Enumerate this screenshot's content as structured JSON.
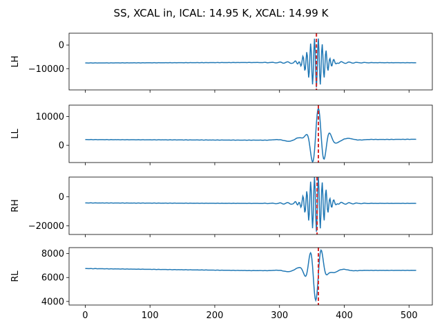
{
  "chart_data": {
    "title": "SS, XCAL in, ICAL: 14.95 K, XCAL: 14.99 K",
    "type": "line",
    "shared_x": true,
    "xlim": [
      -25,
      536
    ],
    "xticks": [
      0,
      100,
      200,
      300,
      400,
      500
    ],
    "line_color": "#1f77b4",
    "marker_color": "#d62728",
    "grid": false,
    "panels": [
      {
        "ylabel": "LH",
        "ylim": [
          -19000,
          5000
        ],
        "yticks": [
          0,
          -10000
        ],
        "ytick_labels": [
          "0",
          "−10000"
        ],
        "baseline_start": -7600,
        "baseline_mid": -7400,
        "baseline_end": -7500,
        "center": 357,
        "amp": -10500,
        "sigma": 12,
        "freq": 0.24,
        "fringe_amp": 700,
        "peak_x": 357,
        "marker_x": 357,
        "x": [
          0,
          50,
          100,
          150,
          200,
          250,
          300,
          320,
          340,
          350,
          354,
          357,
          360,
          364,
          370,
          380,
          400,
          450,
          511
        ],
        "y": [
          -7600,
          -7650,
          -7500,
          -7450,
          -7400,
          -7400,
          -7400,
          -7500,
          -7900,
          -6500,
          -14000,
          -17500,
          -13500,
          -2500,
          -6600,
          -7700,
          -7400,
          -7450,
          -7500
        ]
      },
      {
        "ylabel": "LL",
        "ylim": [
          -6000,
          14000
        ],
        "yticks": [
          10000,
          0
        ],
        "ytick_labels": [
          "10000",
          "0"
        ],
        "baseline_start": 2000,
        "baseline_mid": 1800,
        "baseline_end": 2100,
        "center": 360,
        "amp": 11000,
        "sigma": 10,
        "freq": 0.075,
        "fringe_amp": 1500,
        "peak_x": 360,
        "marker_x": 360,
        "x": [
          0,
          50,
          100,
          150,
          200,
          250,
          300,
          330,
          340,
          350,
          360,
          370,
          380,
          400,
          450,
          511
        ],
        "y": [
          2100,
          1600,
          1800,
          1700,
          1900,
          2000,
          2100,
          2700,
          4000,
          -5500,
          12800,
          100,
          3800,
          2100,
          2200,
          2100
        ]
      },
      {
        "ylabel": "RH",
        "ylim": [
          -26000,
          13500
        ],
        "yticks": [
          0,
          -20000
        ],
        "ytick_labels": [
          "0",
          "−20000"
        ],
        "baseline_start": -4300,
        "baseline_mid": -4600,
        "baseline_end": -4600,
        "center": 357,
        "amp": -19500,
        "sigma": 12,
        "freq": 0.24,
        "fringe_amp": 1200,
        "peak_x": 357,
        "marker_x": 358,
        "x": [
          0,
          50,
          100,
          150,
          200,
          250,
          300,
          340,
          350,
          354,
          357,
          360,
          364,
          370,
          400,
          450,
          511
        ],
        "y": [
          -4200,
          -4500,
          -4600,
          -4700,
          -4700,
          -4800,
          -4700,
          -4600,
          5000,
          -22000,
          -24000,
          10000,
          -500,
          -4600,
          -4500,
          -4600,
          -4600
        ]
      },
      {
        "ylabel": "RL",
        "ylim": [
          3700,
          8500
        ],
        "yticks": [
          8000,
          6000,
          4000
        ],
        "ytick_labels": [
          "8000",
          "6000",
          "4000"
        ],
        "baseline_start": 6750,
        "baseline_mid": 6580,
        "baseline_end": 6600,
        "center": 356,
        "amp": -2500,
        "sigma": 9,
        "freq": 0.08,
        "fringe_amp": 350,
        "peak_x": 357,
        "marker_x": 360,
        "x": [
          0,
          20,
          100,
          150,
          200,
          250,
          300,
          330,
          345,
          352,
          360,
          366,
          375,
          400,
          450,
          511
        ],
        "y": [
          6550,
          6750,
          6700,
          6650,
          6600,
          6600,
          6550,
          6400,
          5000,
          8300,
          3850,
          8100,
          6200,
          6600,
          6600,
          6600
        ]
      }
    ]
  }
}
